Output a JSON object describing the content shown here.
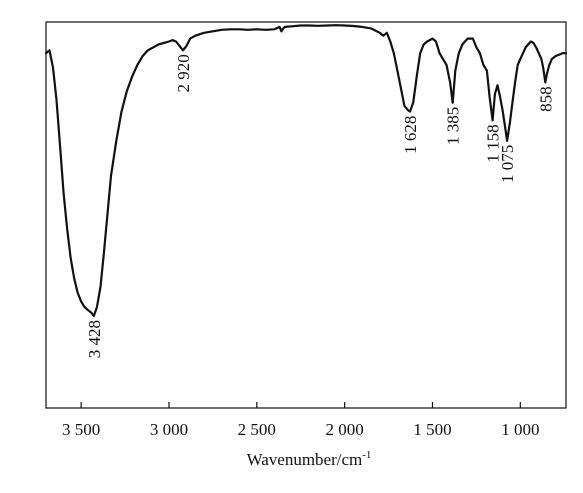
{
  "chart_data": {
    "type": "line",
    "title": "",
    "xlabel": "Wavenumber/cm",
    "xlabel_superscript": "-1",
    "ylabel": "",
    "xlim": [
      3700,
      740
    ],
    "ylim": [
      0,
      100
    ],
    "x_reversed": true,
    "grid": false,
    "x_ticks": [
      3500,
      3000,
      2500,
      2000,
      1500,
      1000
    ],
    "x_tick_labels": [
      "3 500",
      "3 000",
      "2 500",
      "2 000",
      "1 500",
      "1 000"
    ],
    "y_ticks_shown": false,
    "series": [
      {
        "x": [
          3700,
          3680,
          3660,
          3640,
          3620,
          3600,
          3580,
          3560,
          3540,
          3520,
          3500,
          3480,
          3460,
          3440,
          3428,
          3410,
          3390,
          3370,
          3350,
          3330,
          3300,
          3270,
          3240,
          3210,
          3180,
          3150,
          3120,
          3090,
          3060,
          3030,
          3000,
          2980,
          2960,
          2940,
          2920,
          2900,
          2880,
          2850,
          2800,
          2750,
          2700,
          2650,
          2600,
          2550,
          2500,
          2450,
          2400,
          2370,
          2360,
          2350,
          2340,
          2300,
          2250,
          2200,
          2150,
          2100,
          2050,
          2000,
          1950,
          1900,
          1850,
          1800,
          1780,
          1760,
          1740,
          1720,
          1700,
          1680,
          1660,
          1640,
          1628,
          1610,
          1590,
          1570,
          1550,
          1530,
          1500,
          1480,
          1460,
          1440,
          1420,
          1400,
          1385,
          1370,
          1350,
          1330,
          1300,
          1270,
          1250,
          1230,
          1210,
          1190,
          1175,
          1158,
          1145,
          1130,
          1115,
          1100,
          1085,
          1075,
          1060,
          1045,
          1030,
          1015,
          1000,
          985,
          970,
          955,
          940,
          925,
          910,
          895,
          880,
          870,
          858,
          848,
          835,
          820,
          800,
          780,
          760,
          740
        ],
        "y": [
          90,
          91,
          85,
          74,
          58,
          42,
          30,
          20,
          13,
          8,
          5,
          3,
          2,
          1,
          0,
          3,
          10,
          22,
          35,
          48,
          60,
          70,
          77,
          82,
          86,
          89,
          91,
          92,
          93,
          93.5,
          94,
          94.5,
          94,
          92.5,
          91,
          92.5,
          95,
          96,
          97,
          97.5,
          98,
          98.2,
          98.2,
          98,
          98.2,
          98,
          98.2,
          99,
          97.5,
          98.5,
          99,
          99.2,
          99.5,
          99.5,
          99.4,
          99.5,
          99.6,
          99.5,
          99.3,
          99,
          98.5,
          97,
          96,
          97,
          94,
          90,
          84,
          78,
          72,
          70.5,
          70,
          73,
          82,
          90,
          93,
          94,
          95,
          94,
          90,
          88,
          86,
          80,
          73,
          84,
          90,
          93,
          95,
          95,
          92,
          90,
          86,
          84,
          75,
          67,
          76,
          79,
          75,
          70,
          64,
          60,
          66,
          73,
          80,
          86,
          88,
          90,
          92,
          93,
          94,
          93.5,
          92,
          90,
          88,
          85,
          80,
          83,
          86,
          88,
          89,
          89.5,
          90,
          90
        ]
      }
    ],
    "annotations": [
      {
        "text": "3 428",
        "x": 3428
      },
      {
        "text": "2 920",
        "x": 2920
      },
      {
        "text": "1 628",
        "x": 1628
      },
      {
        "text": "1 385",
        "x": 1385
      },
      {
        "text": "1 158",
        "x": 1158
      },
      {
        "text": "1 075",
        "x": 1075
      },
      {
        "text": "858",
        "x": 858
      }
    ]
  }
}
